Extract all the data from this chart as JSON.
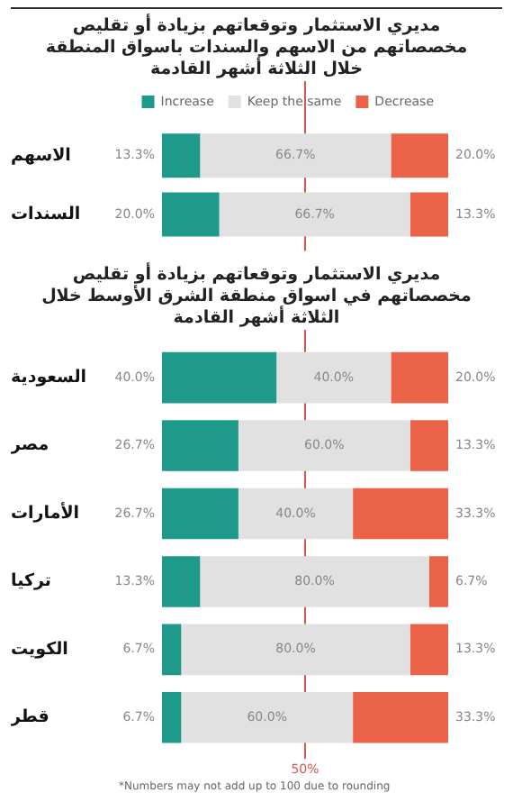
{
  "chart_data": [
    {
      "type": "bar",
      "orientation": "horizontal",
      "stacked": true,
      "title": "مديري الاستثمار وتوقعاتهم بزيادة أو تقليص مخصصاتهم من الاسهم والسندات باسواق المنطقة خلال الثلاثة أشهر القادمة",
      "categories": [
        "الاسهم",
        "السندات"
      ],
      "series": [
        {
          "name": "Increase",
          "color": "#1f9a8a",
          "values": [
            13.3,
            20.0
          ],
          "value_labels": [
            "13.3%",
            "20.0%"
          ]
        },
        {
          "name": "Keep the same",
          "color": "#e1e1e1",
          "values": [
            66.7,
            66.7
          ],
          "value_labels": [
            "66.7%",
            "66.7%"
          ]
        },
        {
          "name": "Decrease",
          "color": "#ea6248",
          "values": [
            20.0,
            13.3
          ],
          "value_labels": [
            "20.0%",
            "13.3%"
          ]
        }
      ],
      "xlim": [
        0,
        100
      ],
      "tick_labels": "y",
      "legend": "top",
      "ref_lines": [
        {
          "axis": "x",
          "value": 50,
          "color": "#d9534f"
        }
      ]
    },
    {
      "type": "bar",
      "orientation": "horizontal",
      "stacked": true,
      "title": "مديري الاستثمار وتوقعاتهم بزيادة أو تقليص مخصصاتهم في اسواق منطقة الشرق الأوسط خلال الثلاثة أشهر القادمة",
      "categories": [
        "السعودية",
        "مصر",
        "الأمارات",
        "تركيا",
        "الكويت",
        "قطر"
      ],
      "series": [
        {
          "color": "#1f9a8a",
          "values": [
            40.0,
            26.7,
            26.7,
            13.3,
            6.7,
            6.7
          ],
          "value_labels": [
            "40.0%",
            "26.7%",
            "26.7%",
            "13.3%",
            "6.7%",
            "6.7%"
          ]
        },
        {
          "color": "#e1e1e1",
          "values": [
            40.0,
            60.0,
            40.0,
            80.0,
            80.0,
            60.0
          ],
          "value_labels": [
            "40.0%",
            "60.0%",
            "40.0%",
            "80.0%",
            "80.0%",
            "60.0%"
          ]
        },
        {
          "color": "#ea6248",
          "values": [
            20.0,
            13.3,
            33.3,
            6.7,
            13.3,
            33.3
          ],
          "value_labels": [
            "20.0%",
            "13.3%",
            "33.3%",
            "6.7%",
            "13.3%",
            "33.3%"
          ]
        }
      ],
      "xlim": [
        0,
        100
      ],
      "tick_labels": "y",
      "legend": false,
      "ref_lines": [
        {
          "axis": "x",
          "value": 50,
          "label": "50%",
          "color": "#d9534f"
        }
      ],
      "annotations": [
        "*Numbers may not add up to 100 due to rounding"
      ]
    }
  ]
}
